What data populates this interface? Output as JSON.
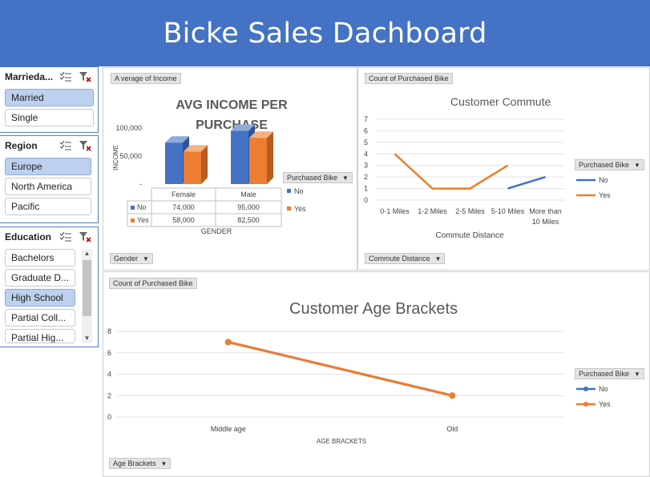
{
  "banner": {
    "title": "Bicke Sales Dachboard"
  },
  "slicers": {
    "marital": {
      "title": "Marrieda...",
      "items": [
        {
          "label": "Married",
          "selected": true
        },
        {
          "label": "Single",
          "selected": false
        }
      ]
    },
    "region": {
      "title": "Region",
      "items": [
        {
          "label": "Europe",
          "selected": true
        },
        {
          "label": "North America",
          "selected": false
        },
        {
          "label": "Pacific",
          "selected": false
        }
      ]
    },
    "education": {
      "title": "Education",
      "items": [
        {
          "label": "Bachelors",
          "selected": false
        },
        {
          "label": "Graduate D...",
          "selected": false
        },
        {
          "label": "High School",
          "selected": true
        },
        {
          "label": "Partial Coll...",
          "selected": false
        },
        {
          "label": "Partial Hig...",
          "selected": false
        }
      ]
    }
  },
  "income_panel": {
    "value_button": "A verage of Income",
    "axis_button": "Gender",
    "legend_button": "Purchased Bike",
    "title": "AVG INCOME PER PURCHASE",
    "ylabel": "INCOME",
    "xlabel": "GENDER",
    "yticks": [
      "100,000",
      "50,000",
      "-"
    ],
    "legend": [
      "No",
      "Yes"
    ],
    "table": {
      "columns": [
        "Female",
        "Male"
      ],
      "rows": [
        {
          "label": "No",
          "values": [
            "74,000",
            "95,000"
          ]
        },
        {
          "label": "Yes",
          "values": [
            "58,000",
            "82,500"
          ]
        }
      ]
    }
  },
  "commute_panel": {
    "value_button": "Count of Purchased Bike",
    "axis_button": "Commute Distance",
    "legend_button": "Purchased Bike",
    "title": "Customer Commute",
    "xlabel": "Commute Distance",
    "legend": [
      "No",
      "Yes"
    ]
  },
  "age_panel": {
    "value_button": "Count of Purchased Bike",
    "axis_button": "Age Brackets",
    "legend_button": "Purchased Bike",
    "title": "Customer Age Brackets",
    "xlabel": "AGE BRACKETS",
    "legend": [
      "No",
      "Yes"
    ]
  },
  "colors": {
    "banner": "#4472c4",
    "no": "#4472c4",
    "yes": "#ed7d31",
    "selected": "#bdd0ee"
  },
  "chart_data": [
    {
      "type": "bar",
      "title": "AVG INCOME PER PURCHASE",
      "xlabel": "GENDER",
      "ylabel": "INCOME",
      "categories": [
        "Female",
        "Male"
      ],
      "series": [
        {
          "name": "No",
          "values": [
            74000,
            95000
          ]
        },
        {
          "name": "Yes",
          "values": [
            58000,
            82500
          ]
        }
      ],
      "ylim": [
        0,
        100000
      ],
      "legend": "right"
    },
    {
      "type": "line",
      "title": "Customer Commute",
      "xlabel": "Commute Distance",
      "categories": [
        "0-1 Miles",
        "1-2 Miles",
        "2-5 Miles",
        "5-10 Miles",
        "More than 10 Miles"
      ],
      "series": [
        {
          "name": "No",
          "values": [
            null,
            null,
            null,
            1,
            2
          ]
        },
        {
          "name": "Yes",
          "values": [
            4,
            1,
            1,
            3,
            null
          ]
        }
      ],
      "ylim": [
        0,
        7
      ],
      "yticks": [
        0,
        1,
        2,
        3,
        4,
        5,
        6,
        7
      ],
      "grid": true,
      "legend": "right"
    },
    {
      "type": "line",
      "title": "Customer Age Brackets",
      "xlabel": "AGE BRACKETS",
      "categories": [
        "Middle age",
        "Old"
      ],
      "series": [
        {
          "name": "No",
          "values": [
            7,
            2
          ]
        },
        {
          "name": "Yes",
          "values": [
            7,
            2
          ]
        }
      ],
      "ylim": [
        0,
        8
      ],
      "yticks": [
        0,
        2,
        4,
        6,
        8
      ],
      "grid": true,
      "legend": "right"
    }
  ]
}
